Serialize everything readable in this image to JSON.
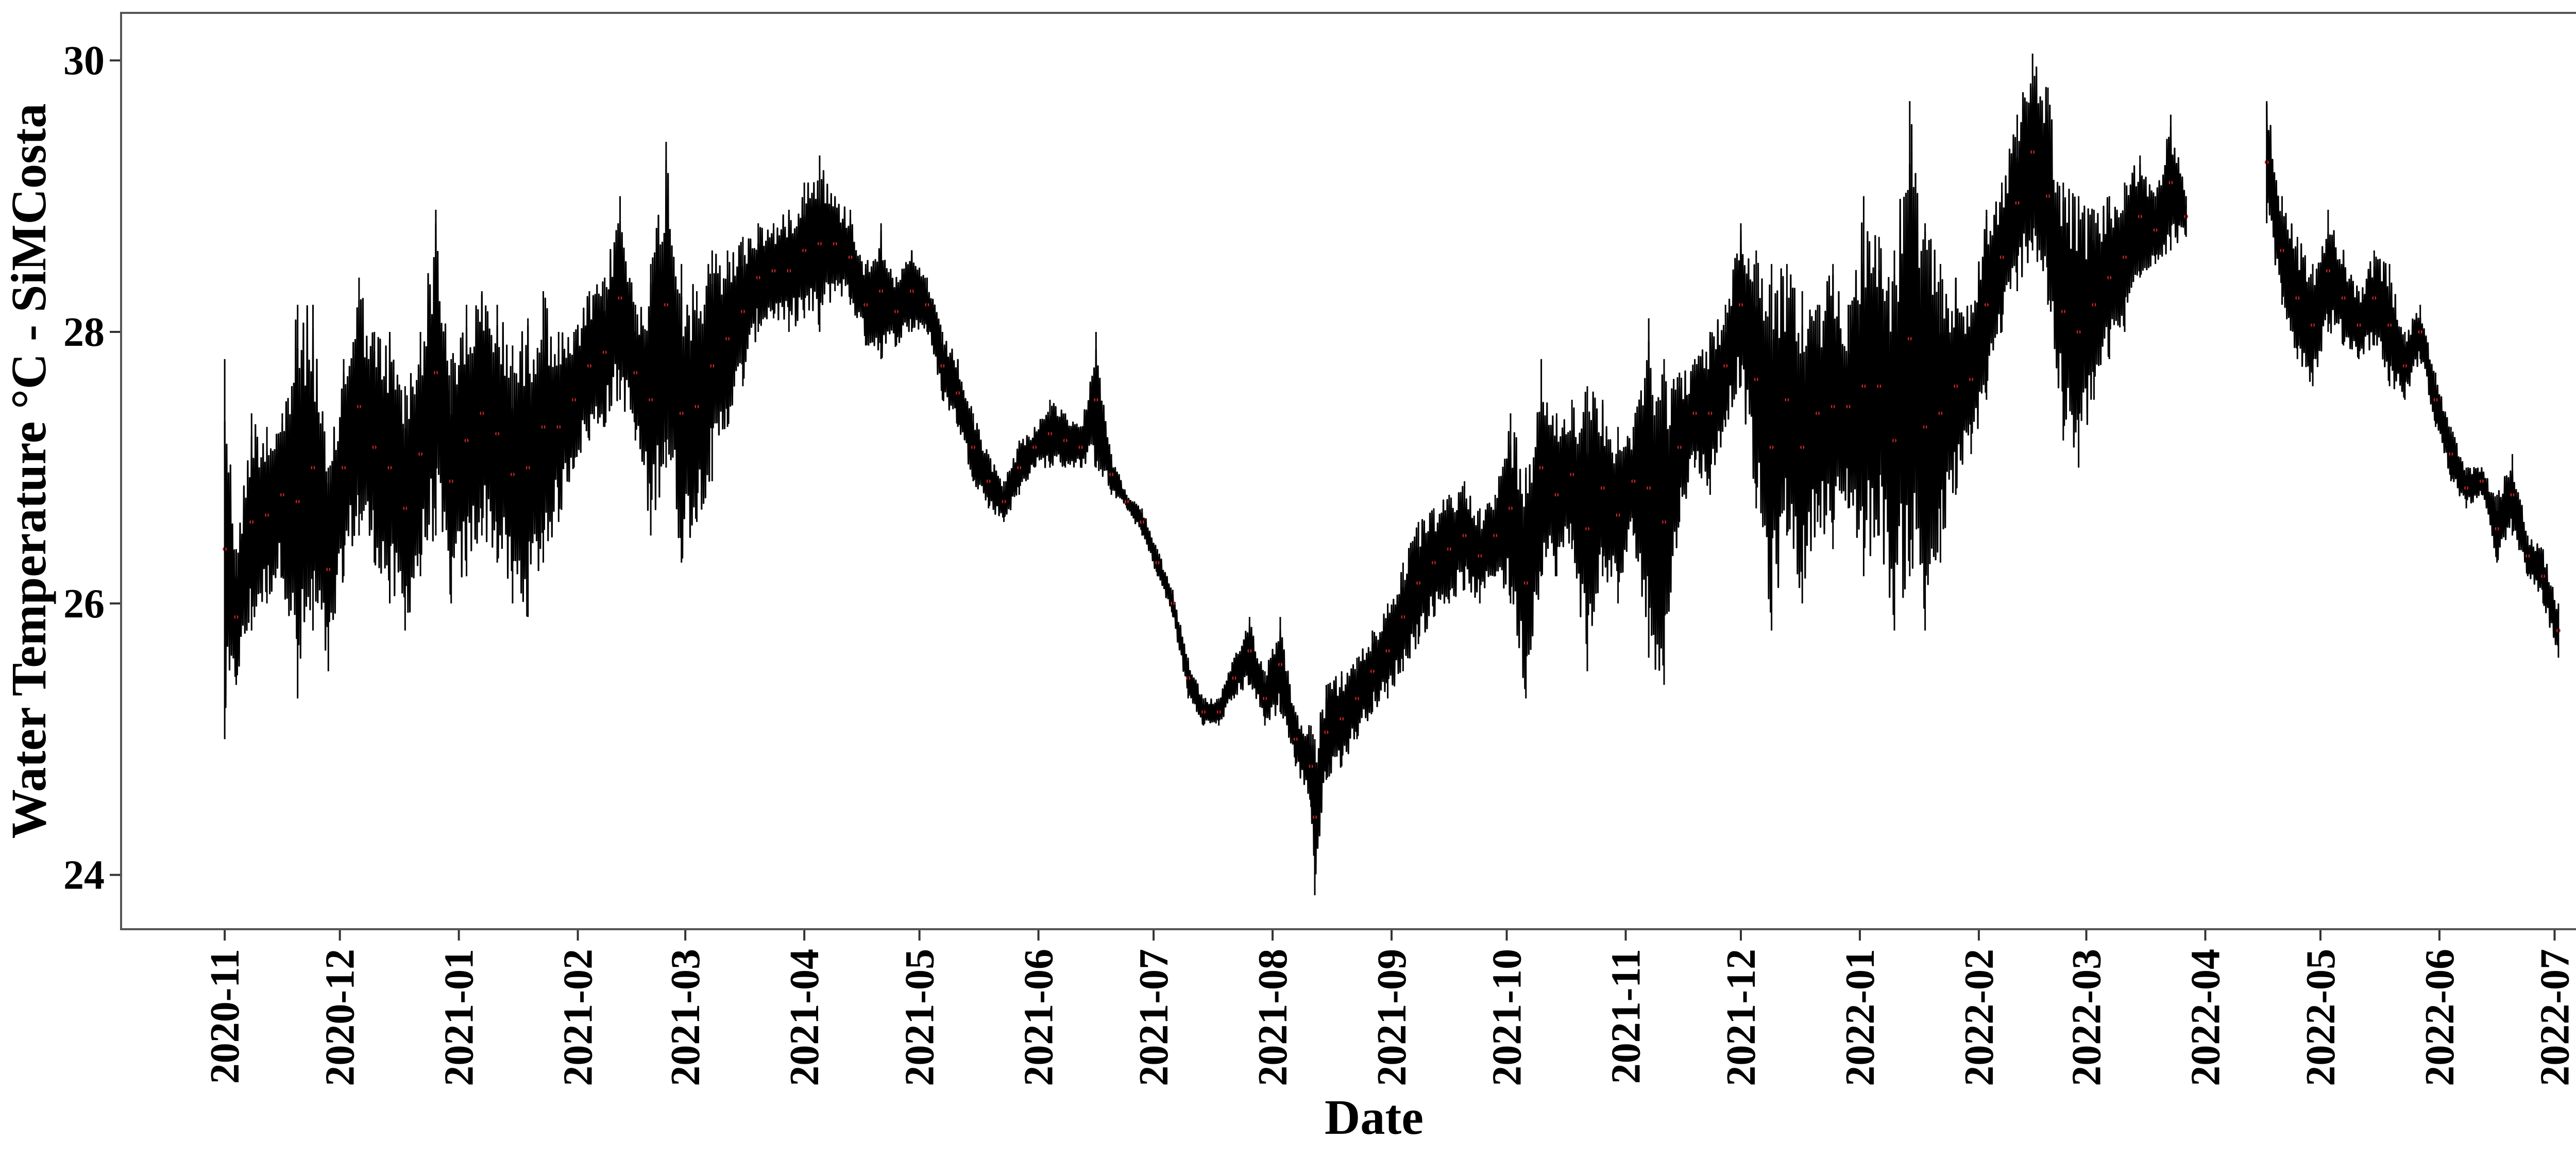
{
  "chart_data": {
    "type": "line",
    "title": "",
    "xlabel": "Date",
    "ylabel": "Water Temperature °C - SiMCosta",
    "x_type": "date",
    "xlim": [
      "2020-10-05",
      "2022-07-20"
    ],
    "ylim": [
      23.6,
      30.35
    ],
    "y_ticks": [
      24,
      26,
      28,
      30
    ],
    "x_ticks": [
      "2020-11-01",
      "2020-12-01",
      "2021-01-01",
      "2021-02-01",
      "2021-03-01",
      "2021-04-01",
      "2021-05-01",
      "2021-06-01",
      "2021-07-01",
      "2021-08-01",
      "2021-09-01",
      "2021-10-01",
      "2021-11-01",
      "2021-12-01",
      "2022-01-01",
      "2022-02-01",
      "2022-03-01",
      "2022-04-01",
      "2022-05-01",
      "2022-06-01",
      "2022-07-01"
    ],
    "x_tick_labels": [
      "2020-11",
      "2020-12",
      "2021-01",
      "2021-02",
      "2021-03",
      "2021-04",
      "2021-05",
      "2021-06",
      "2021-07",
      "2021-08",
      "2021-09",
      "2021-10",
      "2021-11",
      "2021-12",
      "2022-01",
      "2022-02",
      "2022-03",
      "2022-04",
      "2022-05",
      "2022-06",
      "2022-07"
    ],
    "grid": false,
    "legend": "none",
    "colors": {
      "series": "#000000",
      "points": "#d62728",
      "frame": "#555555"
    },
    "series": [
      {
        "segments": [
          {
            "start": "2020-11-01",
            "points": [
              [
                "2020-11-01",
                25.0,
                27.8
              ],
              [
                "2020-11-04",
                25.4,
                26.4
              ],
              [
                "2020-11-08",
                25.8,
                27.4
              ],
              [
                "2020-11-12",
                26.0,
                27.3
              ],
              [
                "2020-11-16",
                26.2,
                27.4
              ],
              [
                "2020-11-20",
                25.3,
                28.2
              ],
              [
                "2020-11-24",
                25.8,
                28.2
              ],
              [
                "2020-11-28",
                25.5,
                27.0
              ],
              [
                "2020-12-02",
                26.2,
                27.8
              ],
              [
                "2020-12-06",
                26.5,
                28.4
              ],
              [
                "2020-12-10",
                26.3,
                28.0
              ],
              [
                "2020-12-14",
                26.0,
                28.0
              ],
              [
                "2020-12-18",
                25.8,
                27.6
              ],
              [
                "2020-12-22",
                26.2,
                28.0
              ],
              [
                "2020-12-26",
                26.5,
                28.9
              ],
              [
                "2020-12-30",
                26.0,
                27.8
              ],
              [
                "2021-01-03",
                26.2,
                28.2
              ],
              [
                "2021-01-07",
                26.5,
                28.3
              ],
              [
                "2021-01-11",
                26.3,
                28.2
              ],
              [
                "2021-01-15",
                26.0,
                27.9
              ],
              [
                "2021-01-19",
                25.9,
                28.1
              ],
              [
                "2021-01-23",
                26.3,
                28.3
              ],
              [
                "2021-01-27",
                26.6,
                28.0
              ],
              [
                "2021-01-31",
                27.0,
                28.0
              ],
              [
                "2021-02-04",
                27.2,
                28.3
              ],
              [
                "2021-02-08",
                27.3,
                28.4
              ],
              [
                "2021-02-12",
                27.5,
                29.0
              ],
              [
                "2021-02-16",
                27.2,
                28.2
              ],
              [
                "2021-02-20",
                26.5,
                28.5
              ],
              [
                "2021-02-24",
                27.0,
                29.4
              ],
              [
                "2021-02-28",
                26.3,
                28.5
              ],
              [
                "2021-03-04",
                26.6,
                28.3
              ],
              [
                "2021-03-08",
                26.9,
                28.6
              ],
              [
                "2021-03-12",
                27.3,
                28.6
              ],
              [
                "2021-03-16",
                27.6,
                28.7
              ],
              [
                "2021-03-20",
                28.0,
                28.8
              ],
              [
                "2021-03-24",
                28.1,
                28.8
              ],
              [
                "2021-03-28",
                28.0,
                28.9
              ],
              [
                "2021-04-01",
                28.1,
                29.1
              ],
              [
                "2021-04-05",
                28.0,
                29.3
              ],
              [
                "2021-04-09",
                28.3,
                29.0
              ],
              [
                "2021-04-13",
                28.2,
                28.9
              ],
              [
                "2021-04-17",
                27.9,
                28.5
              ],
              [
                "2021-04-21",
                27.8,
                28.8
              ],
              [
                "2021-04-25",
                27.9,
                28.4
              ],
              [
                "2021-04-29",
                28.0,
                28.6
              ],
              [
                "2021-05-03",
                28.0,
                28.4
              ],
              [
                "2021-05-07",
                27.5,
                28.0
              ],
              [
                "2021-05-11",
                27.3,
                27.8
              ],
              [
                "2021-05-15",
                26.9,
                27.4
              ],
              [
                "2021-05-19",
                26.7,
                27.1
              ],
              [
                "2021-05-23",
                26.6,
                26.9
              ],
              [
                "2021-05-27",
                26.8,
                27.2
              ],
              [
                "2021-05-31",
                27.0,
                27.3
              ],
              [
                "2021-06-04",
                27.0,
                27.5
              ],
              [
                "2021-06-08",
                27.0,
                27.4
              ],
              [
                "2021-06-12",
                27.0,
                27.3
              ],
              [
                "2021-06-16",
                27.0,
                28.0
              ],
              [
                "2021-06-20",
                26.8,
                27.1
              ],
              [
                "2021-06-24",
                26.7,
                26.8
              ],
              [
                "2021-06-28",
                26.5,
                26.7
              ],
              [
                "2021-07-02",
                26.2,
                26.4
              ],
              [
                "2021-07-06",
                25.9,
                26.1
              ],
              [
                "2021-07-10",
                25.3,
                25.6
              ],
              [
                "2021-07-14",
                25.1,
                25.3
              ],
              [
                "2021-07-18",
                25.1,
                25.3
              ],
              [
                "2021-07-22",
                25.3,
                25.6
              ],
              [
                "2021-07-26",
                25.4,
                25.9
              ],
              [
                "2021-07-30",
                25.1,
                25.5
              ],
              [
                "2021-08-03",
                25.2,
                25.9
              ],
              [
                "2021-08-07",
                24.8,
                25.2
              ],
              [
                "2021-08-11",
                24.5,
                25.1
              ],
              [
                "2021-08-12",
                23.85,
                25.0
              ],
              [
                "2021-08-15",
                24.7,
                25.4
              ],
              [
                "2021-08-19",
                24.8,
                25.5
              ],
              [
                "2021-08-23",
                25.0,
                25.6
              ],
              [
                "2021-08-27",
                25.2,
                25.8
              ],
              [
                "2021-08-31",
                25.3,
                26.0
              ],
              [
                "2021-09-04",
                25.5,
                26.3
              ],
              [
                "2021-09-08",
                25.7,
                26.6
              ],
              [
                "2021-09-12",
                25.9,
                26.7
              ],
              [
                "2021-09-16",
                26.0,
                26.8
              ],
              [
                "2021-09-20",
                26.1,
                26.9
              ],
              [
                "2021-09-24",
                26.0,
                26.7
              ],
              [
                "2021-09-28",
                26.2,
                26.8
              ],
              [
                "2021-10-02",
                26.0,
                27.4
              ],
              [
                "2021-10-06",
                25.3,
                27.0
              ],
              [
                "2021-10-10",
                26.2,
                27.8
              ],
              [
                "2021-10-14",
                26.2,
                27.4
              ],
              [
                "2021-10-18",
                26.4,
                27.5
              ],
              [
                "2021-10-22",
                25.5,
                27.6
              ],
              [
                "2021-10-26",
                26.2,
                27.5
              ],
              [
                "2021-10-30",
                26.0,
                27.3
              ],
              [
                "2021-11-03",
                26.5,
                27.3
              ],
              [
                "2021-11-07",
                25.6,
                28.1
              ],
              [
                "2021-11-11",
                25.4,
                27.8
              ],
              [
                "2021-11-15",
                26.6,
                27.7
              ],
              [
                "2021-11-19",
                27.0,
                27.8
              ],
              [
                "2021-11-23",
                26.8,
                28.0
              ],
              [
                "2021-11-27",
                27.3,
                28.2
              ],
              [
                "2021-12-01",
                27.6,
                28.8
              ],
              [
                "2021-12-05",
                26.7,
                28.6
              ],
              [
                "2021-12-09",
                25.8,
                28.5
              ],
              [
                "2021-12-13",
                26.5,
                28.5
              ],
              [
                "2021-12-17",
                26.0,
                28.3
              ],
              [
                "2021-12-21",
                26.6,
                28.2
              ],
              [
                "2021-12-25",
                26.4,
                28.5
              ],
              [
                "2021-12-29",
                26.7,
                28.2
              ],
              [
                "2022-01-02",
                26.2,
                29.0
              ],
              [
                "2022-01-06",
                26.5,
                28.7
              ],
              [
                "2022-01-10",
                25.8,
                28.6
              ],
              [
                "2022-01-14",
                26.2,
                29.7
              ],
              [
                "2022-01-18",
                25.8,
                28.8
              ],
              [
                "2022-01-22",
                26.3,
                28.5
              ],
              [
                "2022-01-26",
                26.8,
                28.4
              ],
              [
                "2022-01-30",
                27.1,
                28.2
              ],
              [
                "2022-02-03",
                27.5,
                28.9
              ],
              [
                "2022-02-07",
                28.0,
                29.1
              ],
              [
                "2022-02-11",
                28.3,
                29.6
              ],
              [
                "2022-02-15",
                28.6,
                30.05
              ],
              [
                "2022-02-19",
                28.2,
                29.8
              ],
              [
                "2022-02-23",
                27.2,
                29.1
              ],
              [
                "2022-02-27",
                27.0,
                29.0
              ],
              [
                "2022-03-03",
                27.5,
                28.9
              ],
              [
                "2022-03-07",
                27.8,
                29.0
              ],
              [
                "2022-03-11",
                28.0,
                29.1
              ],
              [
                "2022-03-15",
                28.4,
                29.3
              ],
              [
                "2022-03-19",
                28.5,
                29.0
              ],
              [
                "2022-03-23",
                28.6,
                29.6
              ],
              [
                "2022-03-27",
                28.7,
                29.0
              ]
            ]
          },
          {
            "start": "2022-04-17",
            "points": [
              [
                "2022-04-17",
                28.8,
                29.7
              ],
              [
                "2022-04-21",
                28.2,
                29.0
              ],
              [
                "2022-04-25",
                27.8,
                28.7
              ],
              [
                "2022-04-29",
                27.6,
                28.5
              ],
              [
                "2022-05-03",
                28.0,
                28.9
              ],
              [
                "2022-05-07",
                27.9,
                28.6
              ],
              [
                "2022-05-11",
                27.8,
                28.3
              ],
              [
                "2022-05-15",
                27.9,
                28.6
              ],
              [
                "2022-05-19",
                27.6,
                28.5
              ],
              [
                "2022-05-23",
                27.5,
                28.0
              ],
              [
                "2022-05-27",
                27.8,
                28.2
              ],
              [
                "2022-05-31",
                27.3,
                27.7
              ],
              [
                "2022-06-04",
                26.9,
                27.3
              ],
              [
                "2022-06-08",
                26.7,
                27.0
              ],
              [
                "2022-06-12",
                26.8,
                27.0
              ],
              [
                "2022-06-16",
                26.3,
                26.8
              ],
              [
                "2022-06-20",
                26.5,
                27.1
              ],
              [
                "2022-06-24",
                26.2,
                26.5
              ],
              [
                "2022-06-28",
                26.0,
                26.4
              ],
              [
                "2022-07-02",
                25.6,
                26.0
              ]
            ]
          }
        ]
      }
    ]
  }
}
